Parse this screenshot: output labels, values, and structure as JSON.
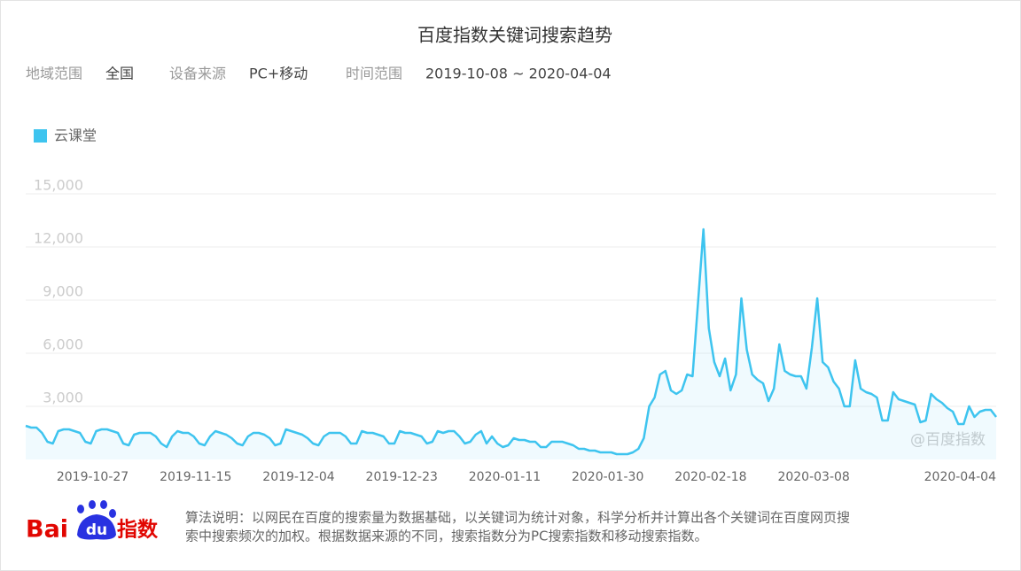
{
  "header": {
    "title": "百度指数关键词搜索趋势",
    "filters": [
      {
        "label": "地域范围",
        "value": "全国"
      },
      {
        "label": "设备来源",
        "value": "PC+移动"
      },
      {
        "label": "时间范围",
        "value": "2019-10-08 ~ 2020-04-04"
      }
    ]
  },
  "chart_data": {
    "type": "line",
    "x": [
      "2019-10-08",
      "2019-10-09",
      "2019-10-10",
      "2019-10-11",
      "2019-10-12",
      "2019-10-13",
      "2019-10-14",
      "2019-10-15",
      "2019-10-16",
      "2019-10-17",
      "2019-10-18",
      "2019-10-19",
      "2019-10-20",
      "2019-10-21",
      "2019-10-22",
      "2019-10-23",
      "2019-10-24",
      "2019-10-25",
      "2019-10-26",
      "2019-10-27",
      "2019-10-28",
      "2019-10-29",
      "2019-10-30",
      "2019-10-31",
      "2019-11-01",
      "2019-11-02",
      "2019-11-03",
      "2019-11-04",
      "2019-11-05",
      "2019-11-06",
      "2019-11-07",
      "2019-11-08",
      "2019-11-09",
      "2019-11-10",
      "2019-11-11",
      "2019-11-12",
      "2019-11-13",
      "2019-11-14",
      "2019-11-15",
      "2019-11-16",
      "2019-11-17",
      "2019-11-18",
      "2019-11-19",
      "2019-11-20",
      "2019-11-21",
      "2019-11-22",
      "2019-11-23",
      "2019-11-24",
      "2019-11-25",
      "2019-11-26",
      "2019-11-27",
      "2019-11-28",
      "2019-11-29",
      "2019-11-30",
      "2019-12-01",
      "2019-12-02",
      "2019-12-03",
      "2019-12-04",
      "2019-12-05",
      "2019-12-06",
      "2019-12-07",
      "2019-12-08",
      "2019-12-09",
      "2019-12-10",
      "2019-12-11",
      "2019-12-12",
      "2019-12-13",
      "2019-12-14",
      "2019-12-15",
      "2019-12-16",
      "2019-12-17",
      "2019-12-18",
      "2019-12-19",
      "2019-12-20",
      "2019-12-21",
      "2019-12-22",
      "2019-12-23",
      "2019-12-24",
      "2019-12-25",
      "2019-12-26",
      "2019-12-27",
      "2019-12-28",
      "2019-12-29",
      "2019-12-30",
      "2019-12-31",
      "2020-01-01",
      "2020-01-02",
      "2020-01-03",
      "2020-01-04",
      "2020-01-05",
      "2020-01-06",
      "2020-01-07",
      "2020-01-08",
      "2020-01-09",
      "2020-01-10",
      "2020-01-11",
      "2020-01-12",
      "2020-01-13",
      "2020-01-14",
      "2020-01-15",
      "2020-01-16",
      "2020-01-17",
      "2020-01-18",
      "2020-01-19",
      "2020-01-20",
      "2020-01-21",
      "2020-01-22",
      "2020-01-23",
      "2020-01-24",
      "2020-01-25",
      "2020-01-26",
      "2020-01-27",
      "2020-01-28",
      "2020-01-29",
      "2020-01-30",
      "2020-01-31",
      "2020-02-01",
      "2020-02-02",
      "2020-02-03",
      "2020-02-04",
      "2020-02-05",
      "2020-02-06",
      "2020-02-07",
      "2020-02-08",
      "2020-02-09",
      "2020-02-10",
      "2020-02-11",
      "2020-02-12",
      "2020-02-13",
      "2020-02-14",
      "2020-02-15",
      "2020-02-16",
      "2020-02-17",
      "2020-02-18",
      "2020-02-19",
      "2020-02-20",
      "2020-02-21",
      "2020-02-22",
      "2020-02-23",
      "2020-02-24",
      "2020-02-25",
      "2020-02-26",
      "2020-02-27",
      "2020-02-28",
      "2020-02-29",
      "2020-03-01",
      "2020-03-02",
      "2020-03-03",
      "2020-03-04",
      "2020-03-05",
      "2020-03-06",
      "2020-03-07",
      "2020-03-08",
      "2020-03-09",
      "2020-03-10",
      "2020-03-11",
      "2020-03-12",
      "2020-03-13",
      "2020-03-14",
      "2020-03-15",
      "2020-03-16",
      "2020-03-17",
      "2020-03-18",
      "2020-03-19",
      "2020-03-20",
      "2020-03-21",
      "2020-03-22",
      "2020-03-23",
      "2020-03-24",
      "2020-03-25",
      "2020-03-26",
      "2020-03-27",
      "2020-03-28",
      "2020-03-29",
      "2020-03-30",
      "2020-03-31",
      "2020-04-01",
      "2020-04-02",
      "2020-04-03",
      "2020-04-04"
    ],
    "series": [
      {
        "name": "云课堂",
        "color": "#3ec4ef",
        "values": [
          1900,
          1800,
          1800,
          1500,
          1000,
          900,
          1600,
          1700,
          1700,
          1600,
          1500,
          1000,
          900,
          1600,
          1700,
          1700,
          1600,
          1500,
          900,
          800,
          1400,
          1500,
          1500,
          1500,
          1300,
          900,
          700,
          1300,
          1600,
          1500,
          1500,
          1300,
          900,
          800,
          1300,
          1600,
          1500,
          1400,
          1200,
          900,
          800,
          1300,
          1500,
          1500,
          1400,
          1200,
          800,
          900,
          1700,
          1600,
          1500,
          1400,
          1200,
          900,
          800,
          1300,
          1500,
          1500,
          1500,
          1300,
          900,
          900,
          1600,
          1500,
          1500,
          1400,
          1300,
          900,
          900,
          1600,
          1500,
          1500,
          1400,
          1300,
          900,
          1000,
          1600,
          1500,
          1600,
          1600,
          1300,
          900,
          1000,
          1400,
          1600,
          900,
          1300,
          900,
          700,
          800,
          1200,
          1100,
          1100,
          1000,
          1000,
          700,
          700,
          1000,
          1000,
          1000,
          900,
          800,
          600,
          600,
          500,
          500,
          400,
          400,
          400,
          300,
          300,
          300,
          400,
          600,
          1200,
          3000,
          3500,
          4800,
          5000,
          3900,
          3700,
          3900,
          4800,
          4700,
          8800,
          13000,
          7400,
          5500,
          4700,
          5700,
          3900,
          4800,
          9100,
          6200,
          4800,
          4500,
          4300,
          3300,
          4000,
          6500,
          5000,
          4800,
          4700,
          4700,
          4000,
          6300,
          9100,
          5500,
          5200,
          4400,
          4000,
          3000,
          3000,
          5600,
          4000,
          3800,
          3700,
          3500,
          2200,
          2200,
          3800,
          3400,
          3300,
          3200,
          3100,
          2100,
          2200,
          3700,
          3400,
          3200,
          2900,
          2700,
          2000,
          2000,
          3000,
          2400,
          2700,
          2800,
          2800,
          2400
        ]
      }
    ],
    "ylim": [
      0,
      15000
    ],
    "yticks": [
      {
        "value": 3000,
        "label": "3,000"
      },
      {
        "value": 6000,
        "label": "6,000"
      },
      {
        "value": 9000,
        "label": "9,000"
      },
      {
        "value": 12000,
        "label": "12,000"
      },
      {
        "value": 15000,
        "label": "15,000"
      }
    ],
    "xticks": [
      "2019-10-27",
      "2019-11-15",
      "2019-12-04",
      "2019-12-23",
      "2020-01-11",
      "2020-01-30",
      "2020-02-18",
      "2020-03-08",
      "2020-04-04"
    ],
    "grid": true,
    "watermark": "@百度指数"
  },
  "footer": {
    "logo": {
      "part1": "Bai",
      "part2": "du",
      "part3": "指数"
    },
    "note": [
      "算法说明：以网民在百度的搜索量为数据基础，以关键词为统计对象，科学分析并计算出各个关键词在百度网页搜",
      "索中搜索频次的加权。根据数据来源的不同，搜索指数分为PC搜索指数和移动搜索指数。"
    ]
  }
}
